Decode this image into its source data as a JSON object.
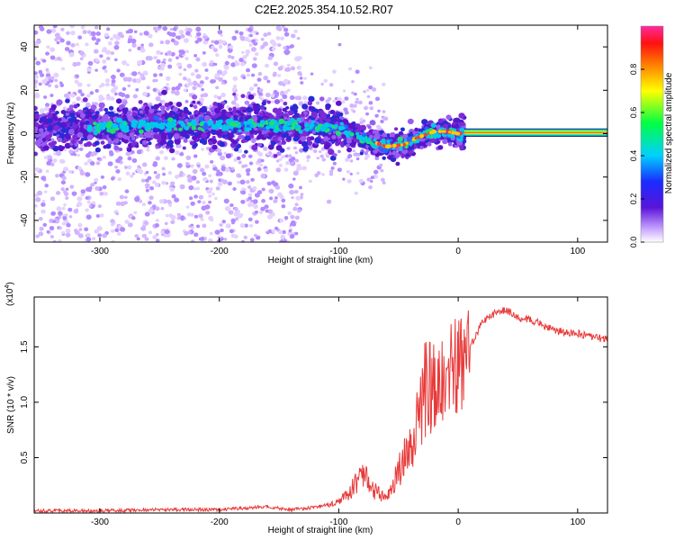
{
  "title": "C2E2.2025.354.10.52.R07",
  "colors": {
    "series_line": "#e83a3a",
    "spectro_point": "#7a2ad6",
    "spectro_faint": "#d7b9ff",
    "axis": "#000000",
    "tick_label": "#000000"
  },
  "colorbar": {
    "label": "Normalized spectral amplitude",
    "ticks": [
      "0.0",
      "0.2",
      "0.4",
      "0.6",
      "0.8"
    ]
  },
  "chart_data": [
    {
      "type": "heatmap",
      "xlabel": "Height of straight line (km)",
      "ylabel": "Frequency (Hz)",
      "xlim": [
        -355,
        125
      ],
      "ylim": [
        -50,
        50
      ],
      "x_ticks": [
        "-300",
        "-200",
        "-100",
        "0",
        "100"
      ],
      "y_ticks": [
        "-40",
        "-20",
        "0",
        "20",
        "40"
      ],
      "ridge_centerline": {
        "x": [
          -355,
          -300,
          -250,
          -200,
          -150,
          -120,
          -100,
          -80,
          -60,
          -45,
          -35,
          -20,
          -10,
          0,
          5,
          125
        ],
        "y": [
          3,
          3,
          4,
          4,
          4,
          3,
          2,
          -2,
          -6,
          -5,
          -2,
          1,
          1,
          0,
          0.5,
          0.5
        ]
      }
    },
    {
      "type": "line",
      "xlabel": "Height of straight line (km)",
      "ylabel": "SNR (10 * v/v)",
      "y_multiplier_label": "(x10",
      "y_multiplier_exp": "4",
      "xlim": [
        -355,
        125
      ],
      "ylim": [
        0,
        1.95
      ],
      "x_ticks": [
        "-300",
        "-200",
        "-100",
        "0",
        "100"
      ],
      "y_ticks": [
        "0.5",
        "1.0",
        "1.5"
      ],
      "series": [
        {
          "x": [
            -355,
            -300,
            -250,
            -200,
            -160,
            -150,
            -140,
            -120,
            -100,
            -90,
            -80,
            -75,
            -70,
            -60,
            -50,
            -40,
            -30,
            -25,
            -20,
            -10,
            0,
            5,
            10,
            20,
            30,
            40,
            50,
            60,
            70,
            80,
            90,
            100,
            110,
            125
          ],
          "y": [
            0.02,
            0.02,
            0.03,
            0.03,
            0.06,
            0.04,
            0.03,
            0.05,
            0.1,
            0.2,
            0.35,
            0.3,
            0.2,
            0.12,
            0.38,
            0.6,
            1.05,
            1.2,
            1.1,
            1.25,
            1.35,
            1.25,
            1.5,
            1.72,
            1.8,
            1.84,
            1.76,
            1.75,
            1.7,
            1.65,
            1.63,
            1.62,
            1.59,
            1.57
          ]
        }
      ]
    }
  ]
}
